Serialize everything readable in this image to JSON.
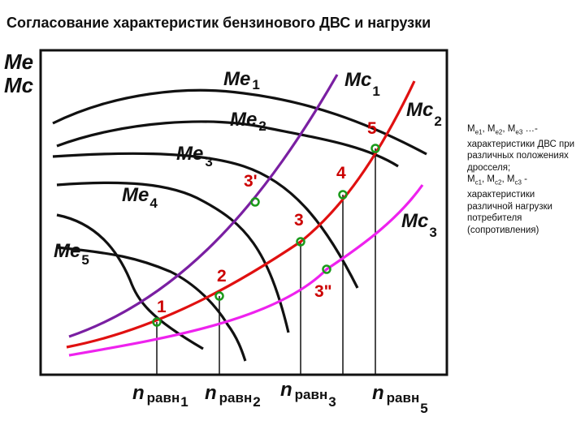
{
  "title": "Согласование характеристик бензинового ДВС и нагрузки",
  "axis": {
    "y_label_top": "Me",
    "y_label_bottom": "Mc"
  },
  "curves": {
    "me1": {
      "symbol": "Me",
      "index": "1",
      "color": "#111111"
    },
    "me2": {
      "symbol": "Me",
      "index": "2",
      "color": "#111111"
    },
    "me3": {
      "symbol": "Me",
      "index": "3",
      "color": "#111111"
    },
    "me4": {
      "symbol": "Me",
      "index": "4",
      "color": "#111111"
    },
    "me5": {
      "symbol": "Me",
      "index": "5",
      "color": "#111111"
    },
    "mc1": {
      "symbol": "Mc",
      "index": "1",
      "color": "#7a1fa2"
    },
    "mc2": {
      "symbol": "Mc",
      "index": "2",
      "color": "#e01010"
    },
    "mc3": {
      "symbol": "Mc",
      "index": "3",
      "color": "#ee22ee"
    }
  },
  "points": {
    "p1": "1",
    "p2": "2",
    "p3": "3",
    "p3prime": "3'",
    "p3dprime": "3\"",
    "p4": "4",
    "p5": "5"
  },
  "n_labels": {
    "n1": {
      "symbol": "n",
      "sub": "равн",
      "index": "1"
    },
    "n2": {
      "symbol": "n",
      "sub": "равн",
      "index": "2"
    },
    "n3": {
      "symbol": "n",
      "sub": "равн",
      "index": "3"
    },
    "n5": {
      "symbol": "n",
      "sub": "равн",
      "index": "5"
    }
  },
  "legend": {
    "line1_sym": "M",
    "line1_a": "e1",
    "line1_sep1": ", M",
    "line1_b": "e2",
    "line1_sep2": ", M",
    "line1_c": "e3",
    "line1_tail": " …-",
    "text1": "характеристики ДВС при различных положениях дросселя;",
    "line2_sym": "M",
    "line2_a": "c1",
    "line2_sep1": ", M",
    "line2_b": "c2",
    "line2_sep2": ", M",
    "line2_c": "c3",
    "line2_tail": " -",
    "text2": "характеристики различной нагрузки потребителя (сопротивления)"
  },
  "marker_color": "#1a9a1a"
}
